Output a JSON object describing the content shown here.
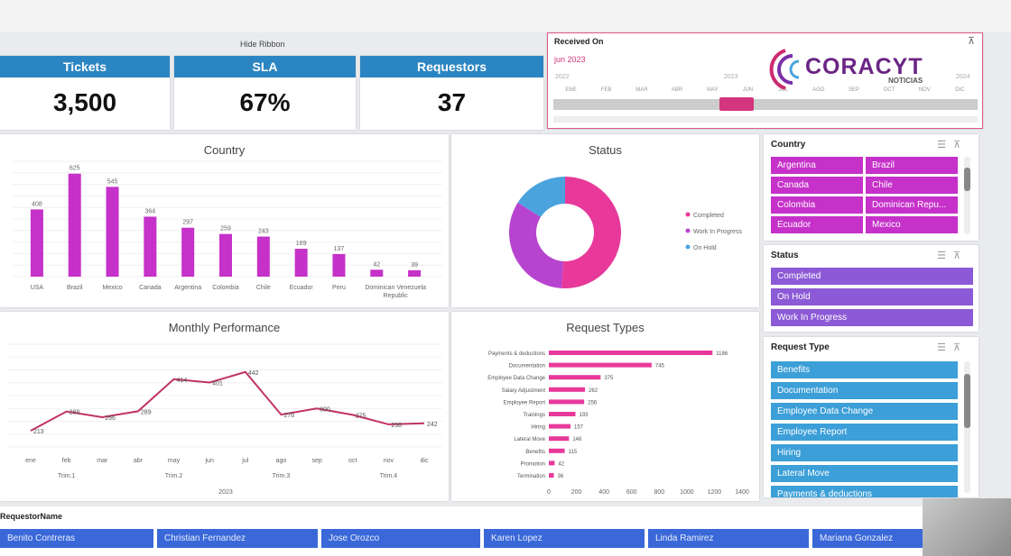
{
  "ribbon": {
    "hide_label": "Hide Ribbon"
  },
  "kpis": [
    {
      "label": "Tickets",
      "value": "3,500"
    },
    {
      "label": "SLA",
      "value": "67%"
    },
    {
      "label": "Requestors",
      "value": "37"
    }
  ],
  "date_slicer": {
    "title": "Received On",
    "selected": "jun 2023",
    "years": [
      "2022",
      "2023",
      "2024"
    ],
    "months": [
      "ENE",
      "FEB",
      "MAR",
      "ABR",
      "MAY",
      "JUN",
      "JUL",
      "AGO",
      "SEP",
      "OCT",
      "NOV",
      "DIC"
    ]
  },
  "watermark": {
    "brand": "CORACYT",
    "sub": "NOTICIAS"
  },
  "country_chart": {
    "title": "Country",
    "chart_data": {
      "type": "bar",
      "categories": [
        "USA",
        "Brazil",
        "Mexico",
        "Canada",
        "Argentina",
        "Colombia",
        "Chile",
        "Ecuador",
        "Peru",
        "Dominican Venezuela Republic"
      ],
      "values": [
        408,
        625,
        545,
        364,
        297,
        259,
        243,
        169,
        137,
        42
      ],
      "labels": [
        "408",
        "625",
        "545",
        "364",
        "297",
        "259",
        "243",
        "169",
        "137",
        "42",
        "39"
      ],
      "extra_value": 39,
      "color": "#c531c9"
    }
  },
  "status_chart": {
    "title": "Status",
    "chart_data": {
      "type": "pie",
      "slices": [
        {
          "name": "Completed",
          "value": 51,
          "color": "#e8399a"
        },
        {
          "name": "Work In Progress",
          "value": 33,
          "color": "#b744cf"
        },
        {
          "name": "On Hold",
          "value": 16,
          "color": "#4ba3dd"
        }
      ],
      "legend": [
        "Completed",
        "Work In Progress",
        "On Hold"
      ]
    }
  },
  "monthly_chart": {
    "title": "Monthly Performance",
    "chart_data": {
      "type": "line",
      "x": [
        "ene",
        "feb",
        "mar",
        "abr",
        "may",
        "jun",
        "jul",
        "ago",
        "sep",
        "oct",
        "nov",
        "dic"
      ],
      "values": [
        213,
        288,
        266,
        289,
        414,
        401,
        442,
        276,
        300,
        275,
        238,
        242
      ],
      "labels": [
        "213",
        "288",
        "266",
        "289",
        "414",
        "401",
        "442",
        "276",
        "300",
        "275",
        "238",
        "242"
      ],
      "quarters": [
        "Trim.1",
        "Trim.2",
        "Trim.3",
        "Trim.4"
      ],
      "year": "2023",
      "ylim": [
        150,
        550
      ],
      "color": "#c0335d"
    }
  },
  "request_types_chart": {
    "title": "Request Types",
    "chart_data": {
      "type": "bar",
      "orientation": "horizontal",
      "categories": [
        "Payments & deductions",
        "Documentation",
        "Employee Data Change",
        "Salary Adjustment",
        "Employee Report",
        "Trainings",
        "Hiring",
        "Lateral Move",
        "Benefits",
        "Promotion",
        "Termination"
      ],
      "values": [
        1186,
        745,
        375,
        262,
        256,
        193,
        157,
        146,
        115,
        42,
        36
      ],
      "labels": [
        "1186",
        "745",
        "375",
        "262",
        "256",
        "193",
        "157",
        "146",
        "115",
        "42",
        "36"
      ],
      "xticks": [
        "0",
        "200",
        "400",
        "600",
        "800",
        "1000",
        "1200",
        "1400"
      ],
      "xlim": [
        0,
        1400
      ],
      "color": "#e8399a"
    }
  },
  "country_slicer": {
    "title": "Country",
    "items": [
      "Argentina",
      "Brazil",
      "Canada",
      "Chile",
      "Colombia",
      "Dominican Repu...",
      "Ecuador",
      "Mexico"
    ]
  },
  "status_slicer": {
    "title": "Status",
    "items": [
      "Completed",
      "On Hold",
      "Work In Progress"
    ]
  },
  "request_type_slicer": {
    "title": "Request Type",
    "items": [
      "Benefits",
      "Documentation",
      "Employee Data Change",
      "Employee Report",
      "Hiring",
      "Lateral Move",
      "Payments & deductions"
    ]
  },
  "requestor_slicer": {
    "title": "RequestorName",
    "items": [
      "Benito Contreras",
      "Christian Fernandez",
      "Jose Orozco",
      "Karen Lopez",
      "Linda Ramirez",
      "Mariana Gonzalez"
    ]
  }
}
